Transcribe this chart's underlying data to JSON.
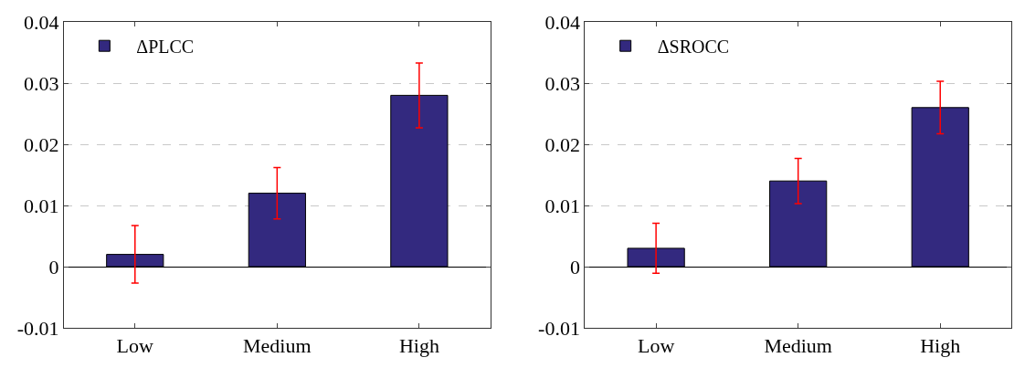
{
  "chart_data": [
    {
      "type": "bar",
      "categories": [
        "Low",
        "Medium",
        "High"
      ],
      "series": [
        {
          "name": "ΔPLCC",
          "color": "#33297f",
          "values": [
            0.002,
            0.012,
            0.028
          ],
          "errors": [
            0.0047,
            0.0042,
            0.0053
          ]
        }
      ],
      "ylim": [
        -0.01,
        0.04
      ],
      "yticks": [
        {
          "value": -0.01,
          "label": "-0.01"
        },
        0,
        0.01,
        0.02,
        0.03,
        0.04
      ],
      "grid": "y",
      "legend": "top left"
    },
    {
      "type": "bar",
      "categories": [
        "Low",
        "Medium",
        "High"
      ],
      "series": [
        {
          "name": "ΔSROCC",
          "color": "#33297f",
          "values": [
            0.003,
            0.014,
            0.026
          ],
          "errors": [
            0.0041,
            0.0037,
            0.0043
          ]
        }
      ],
      "ylim": [
        -0.01,
        0.04
      ],
      "yticks": [
        {
          "value": -0.01,
          "label": "-0.01"
        },
        0,
        0.01,
        0.02,
        0.03,
        0.04
      ],
      "grid": "y",
      "legend": "top left"
    }
  ]
}
